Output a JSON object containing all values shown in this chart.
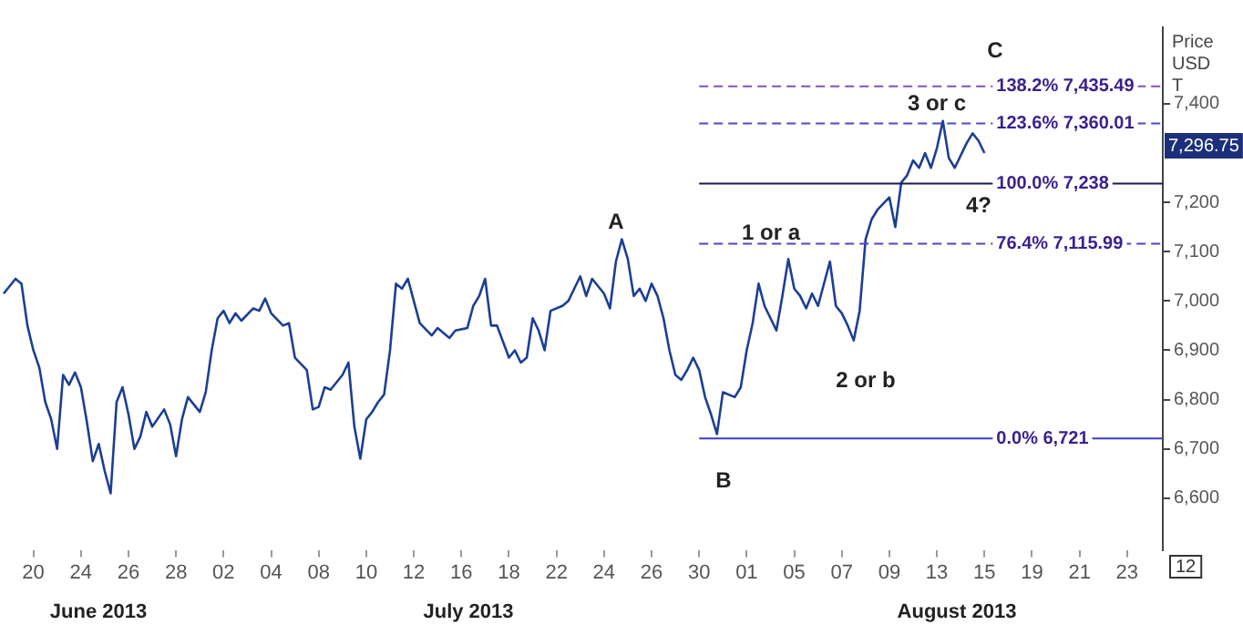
{
  "chart_data": {
    "type": "line",
    "ylabel": "Price USD T",
    "marker": "none",
    "grid": false,
    "legend": false,
    "categories": [
      null,
      null,
      null,
      null,
      null,
      "20",
      null,
      null,
      null,
      null,
      null,
      null,
      null,
      "24",
      null,
      null,
      null,
      null,
      null,
      null,
      null,
      "26",
      null,
      null,
      null,
      null,
      null,
      null,
      null,
      "28",
      null,
      null,
      null,
      null,
      null,
      null,
      null,
      "02",
      null,
      null,
      null,
      null,
      null,
      null,
      null,
      "04",
      null,
      null,
      null,
      null,
      null,
      null,
      null,
      "08",
      null,
      null,
      null,
      null,
      null,
      null,
      null,
      "10",
      null,
      null,
      null,
      null,
      null,
      null,
      null,
      "12",
      null,
      null,
      null,
      null,
      null,
      null,
      null,
      "16",
      null,
      null,
      null,
      null,
      null,
      null,
      null,
      "18",
      null,
      null,
      null,
      null,
      null,
      null,
      null,
      "22",
      null,
      null,
      null,
      null,
      null,
      null,
      null,
      "24",
      null,
      null,
      null,
      null,
      null,
      null,
      null,
      "26",
      null,
      null,
      null,
      null,
      null,
      null,
      null,
      "30",
      null,
      null,
      null,
      null,
      null,
      null,
      null,
      "01",
      null,
      null,
      null,
      null,
      null,
      null,
      null,
      "05",
      null,
      null,
      null,
      null,
      null,
      null,
      null,
      "07",
      null,
      null,
      null,
      null,
      null,
      null,
      null,
      "09",
      null,
      null,
      null,
      null,
      null,
      null,
      null,
      "13",
      null,
      null,
      null,
      null,
      null,
      null,
      null,
      "15",
      null,
      null,
      null,
      null,
      null,
      null,
      null,
      "19",
      null,
      null,
      null,
      null,
      null,
      null,
      null,
      "21",
      null,
      null,
      null,
      null,
      null,
      null,
      null,
      "23",
      null,
      null,
      null,
      null,
      null,
      null
    ],
    "series": [
      {
        "color": "#1c3f94",
        "values": [
          7015,
          null,
          7045,
          7035,
          6950,
          6900,
          6865,
          6795,
          6760,
          6700,
          6850,
          6830,
          6855,
          6825,
          6755,
          6675,
          6710,
          6655,
          6610,
          6795,
          6825,
          6770,
          6700,
          6725,
          6775,
          6745,
          null,
          6780,
          6750,
          6685,
          6760,
          6805,
          null,
          6775,
          6815,
          6900,
          6965,
          6980,
          6955,
          6975,
          6960,
          null,
          6985,
          6980,
          7005,
          6975,
          null,
          6950,
          6955,
          6885,
          null,
          6860,
          6780,
          6785,
          6825,
          6820,
          null,
          6850,
          6875,
          6745,
          6680,
          6760,
          6775,
          6795,
          6810,
          6900,
          7035,
          7025,
          7045,
          7000,
          6955,
          null,
          6930,
          6945,
          null,
          6925,
          6940,
          null,
          6945,
          6990,
          7010,
          7045,
          6950,
          6950,
          null,
          6885,
          6900,
          6875,
          6885,
          6965,
          6940,
          6900,
          6980,
          null,
          6990,
          7000,
          7025,
          7050,
          7010,
          7045,
          null,
          7015,
          6985,
          7080,
          7125,
          7085,
          7010,
          7025,
          7000,
          7035,
          7010,
          6965,
          6900,
          6850,
          6840,
          6860,
          6885,
          6860,
          6805,
          6770,
          6730,
          6815,
          null,
          6805,
          6825,
          6900,
          6955,
          7035,
          6990,
          null,
          6940,
          7010,
          7085,
          7025,
          7010,
          6985,
          7015,
          6990,
          null,
          7080,
          6990,
          6975,
          6950,
          6920,
          6980,
          7125,
          7165,
          7185,
          null,
          7210,
          7150,
          7240,
          7255,
          7285,
          7270,
          7300,
          7270,
          7310,
          7365,
          7290,
          7270,
          null,
          7320,
          7340,
          7325,
          7300,
          null,
          null,
          null,
          null,
          null,
          null,
          null,
          null,
          null,
          null,
          null,
          null,
          null,
          null,
          null,
          null,
          null,
          null,
          null,
          null,
          null,
          null,
          null,
          null,
          null,
          null,
          null,
          null,
          null,
          null
        ]
      }
    ],
    "ylim": [
      6495,
      7555
    ],
    "yticks": [
      {
        "value": 6600,
        "label": "6,600"
      },
      {
        "value": 6700,
        "label": "6,700"
      },
      {
        "value": 6800,
        "label": "6,800"
      },
      {
        "value": 6900,
        "label": "6,900"
      },
      {
        "value": 7000,
        "label": "7,000"
      },
      {
        "value": 7100,
        "label": "7,100"
      },
      {
        "value": 7200,
        "label": "7,200"
      },
      {
        "value": 7400,
        "label": "7,400"
      }
    ],
    "ref_lines": [
      {
        "axis": "y",
        "value": 7435.49,
        "label": "138.2% 7,435.49",
        "color": "#7b52c9",
        "line_style": "dashed"
      },
      {
        "axis": "y",
        "value": 7360.01,
        "label": "123.6% 7,360.01",
        "color": "#4a4ad0",
        "line_style": "dashed"
      },
      {
        "axis": "y",
        "value": 7238,
        "label": "100.0% 7,238",
        "color": "#1a1a4e",
        "line_style": "solid"
      },
      {
        "axis": "y",
        "value": 7115.99,
        "label": "76.4% 7,115.99",
        "color": "#5a3fc8",
        "line_style": "dashed"
      },
      {
        "axis": "y",
        "value": 6721,
        "label": "0.0% 6,721",
        "color": "#3c3cc8",
        "line_style": "solid"
      }
    ],
    "annotations": [
      "A",
      "B",
      "C",
      "1 or a",
      "2 or b",
      "3 or c",
      "4?",
      "7,296.75",
      "June 2013",
      "July 2013",
      "August 2013",
      "12"
    ]
  }
}
